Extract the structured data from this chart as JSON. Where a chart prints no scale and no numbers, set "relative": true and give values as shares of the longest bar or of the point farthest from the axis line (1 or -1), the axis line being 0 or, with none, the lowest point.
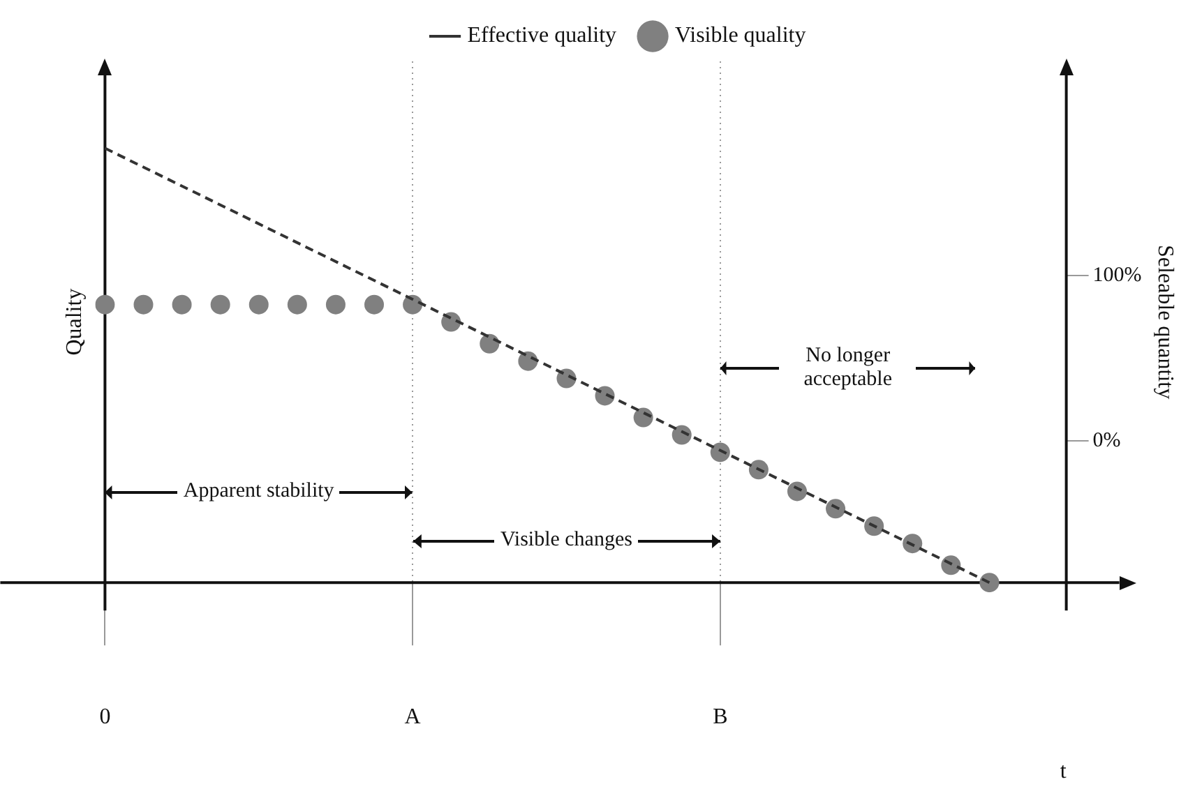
{
  "chart_data": {
    "type": "line",
    "relative": true,
    "xlabel": "t",
    "ylabel": "Quality",
    "y2label": "Seleable quantity",
    "categories": [
      "0",
      null,
      null,
      null,
      null,
      null,
      null,
      null,
      "A",
      null,
      null,
      null,
      null,
      null,
      null,
      null,
      "B",
      null,
      null,
      null,
      null,
      null,
      null,
      null,
      null,
      null
    ],
    "y2lim": [
      -86,
      230
    ],
    "y2ticks": [
      {
        "value": 100,
        "label": "100%"
      },
      {
        "value": 0,
        "label": "0%"
      }
    ],
    "legend": "top",
    "grid": "x",
    "series": [
      {
        "name": "Effective quality",
        "type": "line",
        "color": "#333333",
        "line_style": "dashed",
        "marker": "none",
        "values": [
          1,
          null,
          null,
          null,
          null,
          null,
          null,
          null,
          null,
          null,
          null,
          null,
          null,
          null,
          null,
          null,
          null,
          null,
          null,
          null,
          null,
          null,
          null,
          0,
          null,
          null
        ]
      },
      {
        "name": "Visible quality",
        "type": "scatter",
        "color": "#808080",
        "marker": "circle",
        "values": [
          0.64,
          0.64,
          0.64,
          0.64,
          0.64,
          0.64,
          0.64,
          0.64,
          0.64,
          0.6,
          0.55,
          0.51,
          0.47,
          0.43,
          0.38,
          0.34,
          0.3,
          0.26,
          0.21,
          0.17,
          0.13,
          0.09,
          0.04,
          0,
          null,
          null
        ]
      }
    ],
    "annotations": [
      "Apparent stability",
      "Visible changes",
      "No longer acceptable"
    ]
  }
}
